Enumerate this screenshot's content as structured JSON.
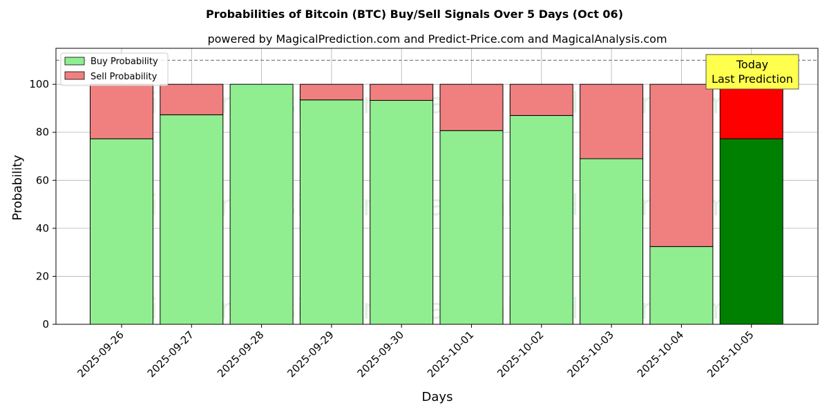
{
  "chart_data": {
    "type": "bar",
    "title": "Probabilities of Bitcoin (BTC) Buy/Sell Signals Over 5 Days (Oct 06)",
    "subtitle": "powered by MagicalPrediction.com and Predict-Price.com and MagicalAnalysis.com",
    "xlabel": "Days",
    "ylabel": "Probability",
    "ylim": [
      0,
      115
    ],
    "yticks": [
      0,
      20,
      40,
      60,
      80,
      100
    ],
    "threshold_line": 110,
    "grid": true,
    "legend_position": "top-left",
    "categories": [
      "2025-09-26",
      "2025-09-27",
      "2025-09-28",
      "2025-09-29",
      "2025-09-30",
      "2025-10-01",
      "2025-10-02",
      "2025-10-03",
      "2025-10-04",
      "2025-10-05"
    ],
    "series": [
      {
        "name": "Buy Probability",
        "color": "#90ee90",
        "last_color": "#008000",
        "values": [
          77.3,
          87.3,
          100.0,
          93.5,
          93.3,
          80.7,
          87.0,
          69.0,
          32.4,
          77.3
        ]
      },
      {
        "name": "Sell Probability",
        "color": "#f08080",
        "last_color": "#ff0000",
        "values": [
          22.7,
          12.7,
          0.0,
          6.5,
          6.7,
          19.3,
          13.0,
          31.0,
          67.6,
          22.7
        ]
      }
    ],
    "annotation": {
      "lines": [
        "Today",
        "Last Prediction"
      ],
      "background": "#ffff4d"
    },
    "watermarks": [
      "MagicalAnalysis.com",
      "MagicalPrediction.com"
    ]
  }
}
